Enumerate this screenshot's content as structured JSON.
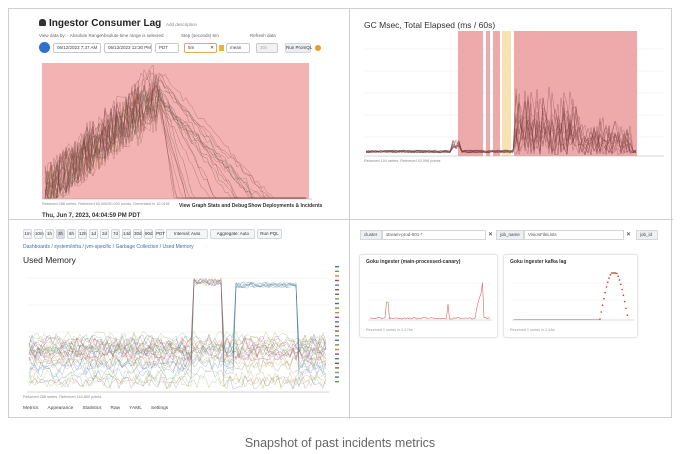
{
  "caption": "Snapshot of past incidents metrics",
  "colors": {
    "lag_shade": "#f3b3b3",
    "gc_shade": "#eea9ab",
    "gc_highlight": "#f6e3b4",
    "line": "#8b3d3d",
    "accent": "#2f6fcf"
  },
  "panel_lag": {
    "title": "Ingestor Consumer Lag",
    "title_suffix": "Add description",
    "title_icon": "bell-icon",
    "time_from_label": "View data by: - Absolute Range",
    "time_to_label": "Absolute time range is selected",
    "time_from": "06/12/2023 7:37 AM",
    "time_to": "06/13/2023 12:30 PM",
    "tz": "PDT",
    "step_label": "Step (seconds) 5m",
    "step_value": "5m",
    "agg_value": "mean",
    "refresh_label": "Refresh data",
    "refresh_value": "30s",
    "run_button": "Run PromQL",
    "footer_note": "Returned 286 series. Retrieved 60,000/50,000 points. Generated in 10.0161",
    "btn_stats": "View Graph Stats and Debug",
    "btn_deploy": "Show Deployments & Incidents",
    "timestamp": "Thu, Jun 7, 2023, 04:04:59 PM PDT"
  },
  "panel_gc": {
    "title": "GC Msec, Total Elapsed (ms / 60s)",
    "footer_note": "Returned 104 series. Retrieved 42,096 points."
  },
  "panel_mem": {
    "toolbar": [
      "1m",
      "10m",
      "1h",
      "3h",
      "6h",
      "12h",
      "1d",
      "2d",
      "7d",
      "14d",
      "30d",
      "90d",
      "PDT",
      "Interval: Auto",
      "Aggregate: Auto",
      "Run PQL"
    ],
    "breadcrumb": [
      "Dashboards",
      "system/infra",
      "jvm-specific",
      "Garbage Collection",
      "Used Memory"
    ],
    "title": "Used Memory",
    "footer_note": "Returned 286 series. Retrieved 116,800 points.",
    "tabs": [
      "Metrics",
      "Appearance",
      "Statistics",
      "Raw",
      "YAML",
      "Settings"
    ]
  },
  "panel_kafka": {
    "filters": [
      {
        "key": "cluster",
        "value": "stream-prod-001-*"
      },
      {
        "key": "job_name",
        "value": "VisionFileLists"
      }
    ],
    "extra_filter": "job_id",
    "cards": [
      {
        "title": "Goku ingester (main-processed-canary)",
        "footer": "Received 1 series in 4.176s"
      },
      {
        "title": "Goku ingester kafka lag",
        "footer": "Received 1 series in 2.18s"
      }
    ]
  }
}
